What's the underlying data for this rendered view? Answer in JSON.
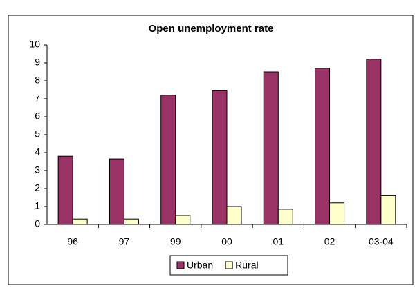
{
  "chart_data": {
    "type": "bar",
    "title": "Open unemployment rate",
    "categories": [
      "96",
      "97",
      "99",
      "00",
      "01",
      "02",
      "03-04"
    ],
    "series": [
      {
        "name": "Urban",
        "color": "#993366",
        "values": [
          3.8,
          3.65,
          7.2,
          7.45,
          8.5,
          8.7,
          9.2
        ]
      },
      {
        "name": "Rural",
        "color": "#ffffcc",
        "values": [
          0.3,
          0.3,
          0.5,
          1.0,
          0.85,
          1.2,
          1.6
        ]
      }
    ],
    "ylim": [
      0,
      10
    ],
    "yticks": [
      0,
      1,
      2,
      3,
      4,
      5,
      6,
      7,
      8,
      9,
      10
    ],
    "grid": false,
    "legend": "bottom"
  }
}
